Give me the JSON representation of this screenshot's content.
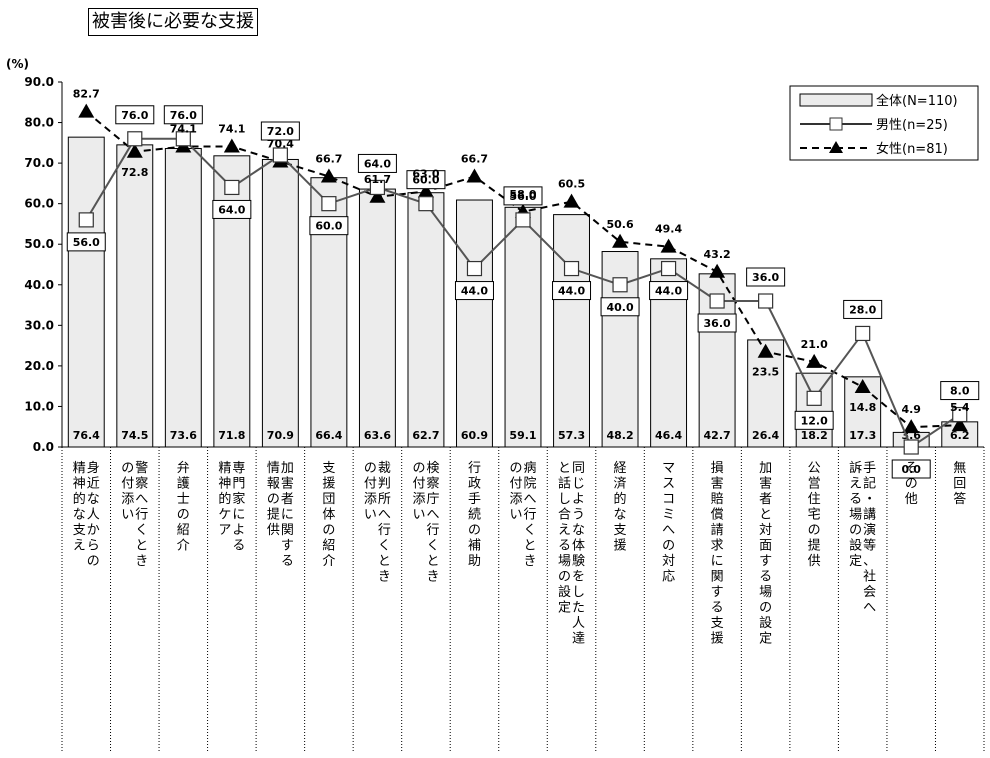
{
  "chart_data": {
    "type": "bar",
    "title": "被害後に必要な支援",
    "ylabel": "(%)",
    "ylim": [
      0,
      90
    ],
    "yticks": [
      "0.0",
      "10.0",
      "20.0",
      "30.0",
      "40.0",
      "50.0",
      "60.0",
      "70.0",
      "80.0",
      "90.0"
    ],
    "legend_position": "top-right",
    "categories": [
      "身近な人からの精神的な支え",
      "警察へ行くときの付添い",
      "弁護士の紹介",
      "専門家による精神的ケア",
      "加害者に関する情報の提供",
      "支援団体の紹介",
      "裁判所へ行くときの付添い",
      "検察庁へ行くときの付添い",
      "行政手続の補助",
      "病院へ行くときの付添い",
      "同じような体験をした人達と話し合える場の設定",
      "経済的な支援",
      "マスコミへの対応",
      "損害賠償請求に関する支援",
      "加害者と対面する場の設定",
      "公営住宅の提供",
      "手記・講演等、社会へ訴える場の設定",
      "その他",
      "無回答"
    ],
    "category_lines": [
      [
        "身近な人からの",
        "精神的な支え"
      ],
      [
        "警察へ行くとき",
        "の付添い"
      ],
      [
        "弁護士の紹介"
      ],
      [
        "専門家による",
        "精神的ケア"
      ],
      [
        "加害者に関する",
        "情報の提供"
      ],
      [
        "支援団体の紹介"
      ],
      [
        "裁判所へ行くとき",
        "の付添い"
      ],
      [
        "検察庁へ行くとき",
        "の付添い"
      ],
      [
        "行政手続の補助"
      ],
      [
        "病院へ行くとき",
        "の付添い"
      ],
      [
        "同じような体験をした人達",
        "と話し合える場の設定"
      ],
      [
        "経済的な支援"
      ],
      [
        "マスコミへの対応"
      ],
      [
        "損害賠償請求に関する支援"
      ],
      [
        "加害者と対面する場の設定"
      ],
      [
        "公営住宅の提供"
      ],
      [
        "手記・講演等、社会へ",
        "訴える場の設定"
      ],
      [
        "その他"
      ],
      [
        "無回答"
      ]
    ],
    "series": [
      {
        "name": "全体(N=110)",
        "type": "bar",
        "values": [
          76.4,
          74.5,
          73.6,
          71.8,
          70.9,
          66.4,
          63.6,
          62.7,
          60.9,
          59.1,
          57.3,
          48.2,
          46.4,
          42.7,
          26.4,
          18.2,
          17.3,
          3.6,
          6.2
        ],
        "labels": [
          "76.4",
          "74.5",
          "73.6",
          "71.8",
          "70.9",
          "66.4",
          "63.6",
          "62.7",
          "60.9",
          "59.1",
          "57.3",
          "48.2",
          "46.4",
          "42.7",
          "26.4",
          "18.2",
          "17.3",
          "3.6",
          "6.2"
        ],
        "color": "#ececec"
      },
      {
        "name": "男性(n=25)",
        "type": "line",
        "values": [
          56.0,
          76.0,
          76.0,
          64.0,
          72.0,
          60.0,
          64.0,
          60.0,
          44.0,
          56.0,
          44.0,
          40.0,
          44.0,
          36.0,
          36.0,
          12.0,
          28.0,
          0.0,
          8.0
        ],
        "labels": [
          "56.0",
          "76.0",
          "76.0",
          "64.0",
          "72.0",
          "60.0",
          "64.0",
          "60.0",
          "44.0",
          "56.0",
          "44.0",
          "40.0",
          "44.0",
          "36.0",
          "36.0",
          "12.0",
          "28.0",
          "0.0",
          "8.0"
        ],
        "color": "#555555"
      },
      {
        "name": "女性(n=81)",
        "type": "line",
        "values": [
          82.7,
          72.8,
          74.1,
          74.1,
          70.4,
          66.7,
          61.7,
          63.0,
          66.7,
          58.0,
          60.5,
          50.6,
          49.4,
          43.2,
          23.5,
          21.0,
          14.8,
          4.9,
          5.4
        ],
        "labels": [
          "82.7",
          "72.8",
          "74.1",
          "74.1",
          "70.4",
          "66.7",
          "61.7",
          "63.0",
          "66.7",
          "58.0",
          "60.5",
          "50.6",
          "49.4",
          "43.2",
          "23.5",
          "21.0",
          "14.8",
          "4.9",
          "5.4"
        ],
        "color": "#000000"
      }
    ]
  }
}
